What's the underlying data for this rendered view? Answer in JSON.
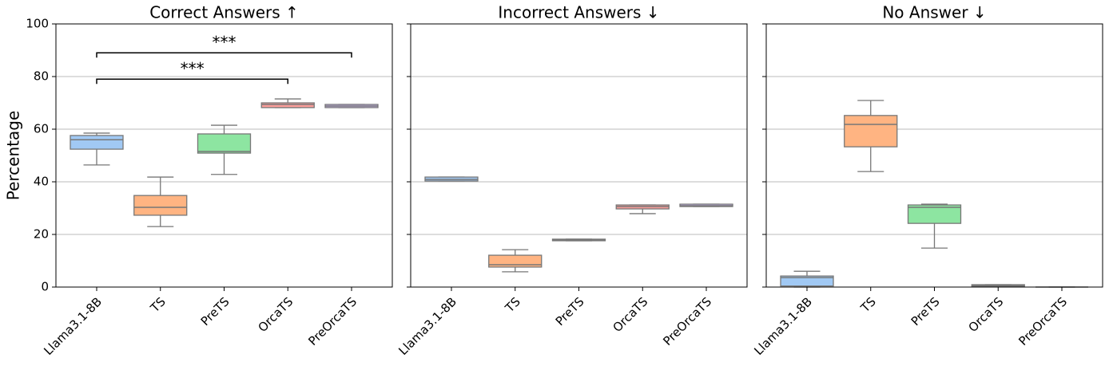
{
  "chart_data": [
    {
      "type": "box",
      "title": "Correct Answers ↑",
      "ylabel": "Percentage",
      "categories": [
        "Llama3.1-8B",
        "TS",
        "PreTS",
        "OrcaTS",
        "PreOrcaTS"
      ],
      "colors": [
        "#a1c9f4",
        "#ffb482",
        "#8de5a1",
        "#ff9f9b",
        "#d0bbff"
      ],
      "boxes": [
        {
          "min": 46.4,
          "q1": 52.4,
          "median": 56,
          "q3": 57.6,
          "max": 58.5
        },
        {
          "min": 23,
          "q1": 27.3,
          "median": 30.3,
          "q3": 34.8,
          "max": 41.8
        },
        {
          "min": 42.8,
          "q1": 50.9,
          "median": 51.5,
          "q3": 58.2,
          "max": 61.5
        },
        {
          "min": 68.2,
          "q1": 68.2,
          "median": 69.4,
          "q3": 70,
          "max": 71.5
        },
        {
          "min": 68.2,
          "q1": 68.2,
          "median": 68.8,
          "q3": 69.4,
          "max": 69.4
        }
      ],
      "annotations": [
        {
          "text": "***",
          "between": [
            "Llama3.1-8B",
            "OrcaTS"
          ],
          "y": 79
        },
        {
          "text": "***",
          "between": [
            "Llama3.1-8B",
            "PreOrcaTS"
          ],
          "y": 89
        }
      ],
      "ylim": [
        0,
        100
      ],
      "yticks": [
        0,
        20,
        40,
        60,
        80,
        100
      ],
      "ytick_labels": true,
      "grid": true
    },
    {
      "type": "box",
      "title": "Incorrect Answers ↓",
      "categories": [
        "Llama3.1-8B",
        "TS",
        "PreTS",
        "OrcaTS",
        "PreOrcaTS"
      ],
      "colors": [
        "#a1c9f4",
        "#ffb482",
        "#8de5a1",
        "#ff9f9b",
        "#d0bbff"
      ],
      "boxes": [
        {
          "min": 40.3,
          "q1": 40.3,
          "median": 40.9,
          "q3": 41.8,
          "max": 41.8
        },
        {
          "min": 5.8,
          "q1": 7.6,
          "median": 8.5,
          "q3": 12.1,
          "max": 14.2
        },
        {
          "min": 17.6,
          "q1": 17.6,
          "median": 17.9,
          "q3": 18.2,
          "max": 18.2
        },
        {
          "min": 27.9,
          "q1": 29.7,
          "median": 30.6,
          "q3": 31.2,
          "max": 31.2
        },
        {
          "min": 30.6,
          "q1": 30.6,
          "median": 30.9,
          "q3": 31.5,
          "max": 31.5
        }
      ],
      "ylim": [
        0,
        100
      ],
      "yticks": [
        0,
        20,
        40,
        60,
        80,
        100
      ],
      "ytick_labels": false,
      "grid": true
    },
    {
      "type": "box",
      "title": "No Answer ↓",
      "categories": [
        "Llama3.1-8B",
        "TS",
        "PreTS",
        "OrcaTS",
        "PreOrcaTS"
      ],
      "colors": [
        "#a1c9f4",
        "#ffb482",
        "#8de5a1",
        "#ff9f9b",
        "#d0bbff"
      ],
      "boxes": [
        {
          "min": 0,
          "q1": 0.4,
          "median": 3.6,
          "q3": 4.2,
          "max": 6
        },
        {
          "min": 43.9,
          "q1": 53.3,
          "median": 61.8,
          "q3": 65.2,
          "max": 70.9
        },
        {
          "min": 14.8,
          "q1": 24.2,
          "median": 30.3,
          "q3": 31.2,
          "max": 31.5
        },
        {
          "min": 0.3,
          "q1": 0.3,
          "median": 0.6,
          "q3": 0.9,
          "max": 0.9
        },
        {
          "min": 0,
          "q1": 0,
          "median": 0,
          "q3": 0,
          "max": 0
        }
      ],
      "ylim": [
        0,
        100
      ],
      "yticks": [
        0,
        20,
        40,
        60,
        80,
        100
      ],
      "ytick_labels": false,
      "grid": true
    }
  ]
}
